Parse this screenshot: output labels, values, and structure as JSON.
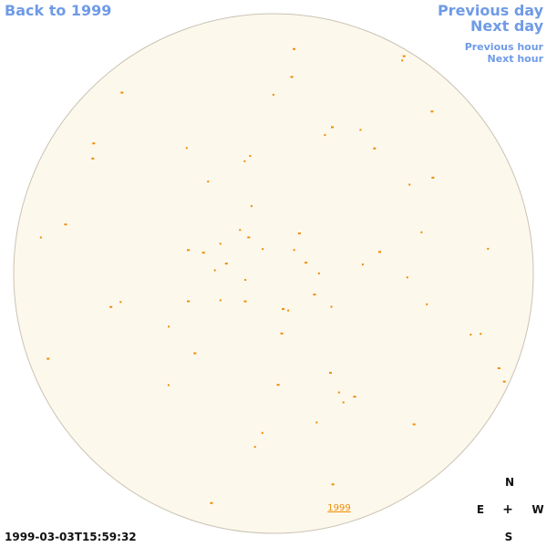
{
  "navigation": {
    "back": "Back to 1999",
    "previous_day": "Previous day",
    "next_day": "Next day",
    "previous_hour": "Previous hour",
    "next_hour": "Next hour"
  },
  "sun_disk": {
    "fill_color": "#fdf8ec",
    "border_color": "#c9c3b4",
    "feature_color": "#f08c00",
    "year_link": "1999"
  },
  "timestamp": "1999-03-03T15:59:32",
  "compass": {
    "north": "N",
    "east": "E",
    "center": "+",
    "west": "W",
    "south": "S"
  }
}
